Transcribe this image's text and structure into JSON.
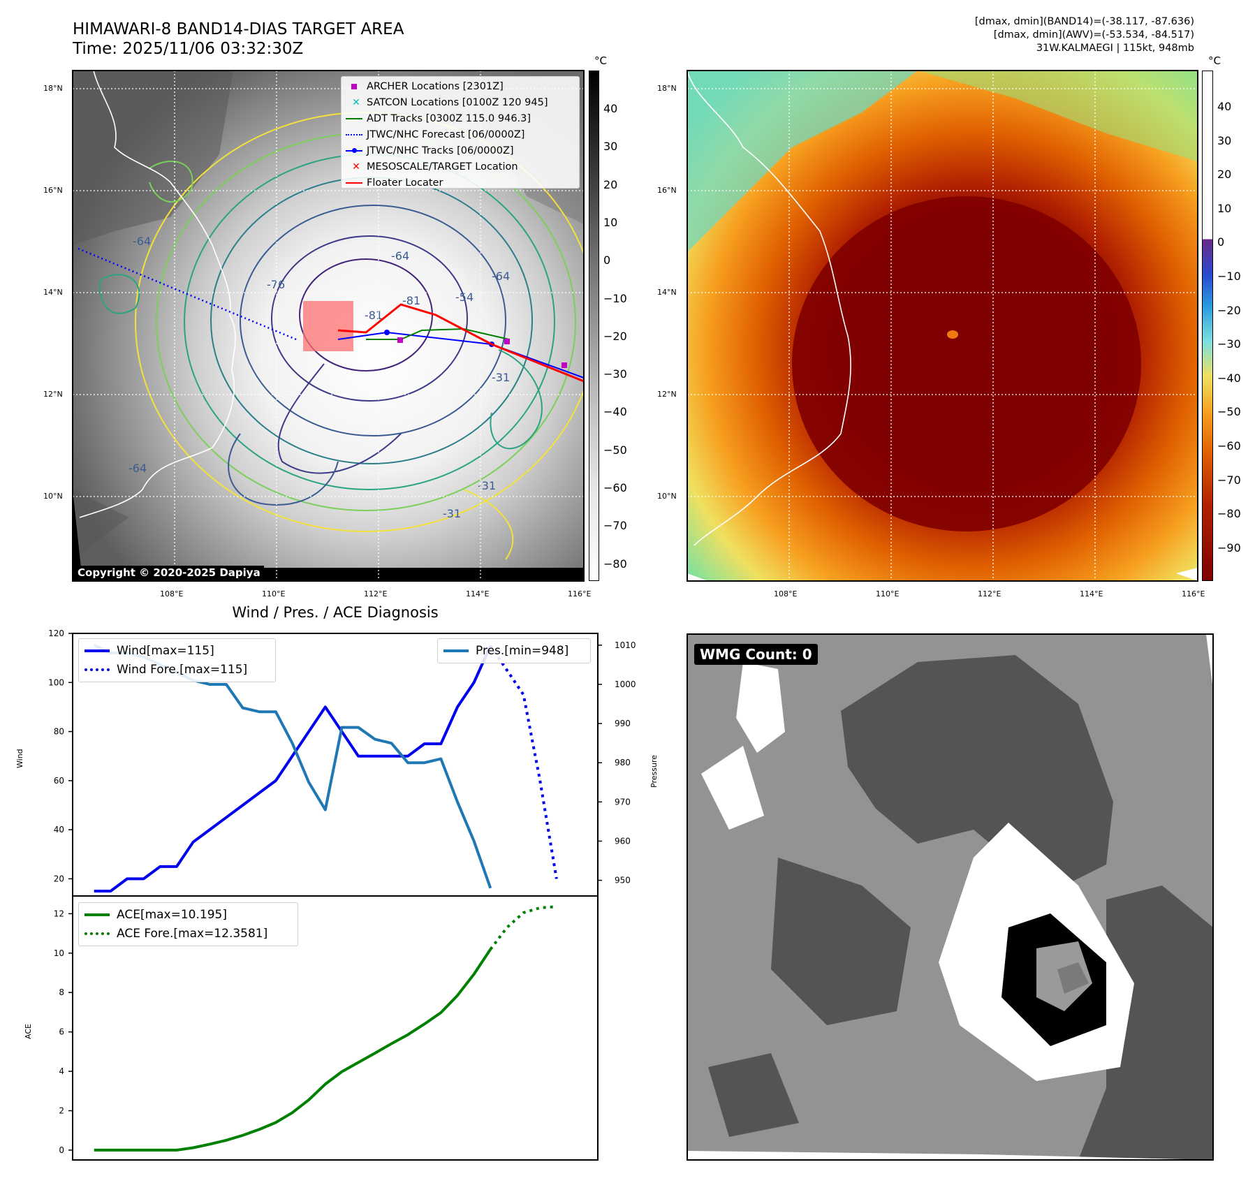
{
  "header": {
    "title_line1": "HIMAWARI-8 BAND14-DIAS TARGET AREA",
    "title_line2": "Time: 2025/11/06 03:32:30Z",
    "stats_line1": "[dmax, dmin](BAND14)=(-38.117, -87.636)",
    "stats_line2": "[dmax, dmin](AWV)=(-53.534, -84.517)",
    "stats_line3": "31W.KALMAEGI | 115kt, 948mb"
  },
  "colors": {
    "wind": "#0000ee",
    "pressure": "#1f77b4",
    "ace": "#008000",
    "track_red": "#ff0000",
    "archer": "#c000c0",
    "satcon": "#00bfbf",
    "jtwc": "#0000ff",
    "ir_eye": "#7f0000",
    "wmg_dark": "#545454"
  },
  "ir_panel": {
    "lat_labels": [
      "18°N",
      "16°N",
      "14°N",
      "12°N",
      "10°N"
    ],
    "lon_labels": [
      "108°E",
      "110°E",
      "112°E",
      "114°E",
      "116°E"
    ],
    "colorbar_unit": "°C",
    "colorbar_ticks": [
      "40",
      "30",
      "20",
      "10",
      "0",
      "−10",
      "−20",
      "−30",
      "−40",
      "−50",
      "−60",
      "−70",
      "−80"
    ],
    "contour_labels": [
      "-64",
      "-76",
      "-81",
      "-64",
      "-31",
      "-64",
      "-31",
      "-31",
      "-64",
      "-81",
      "-54"
    ],
    "copyright": "Copyright © 2020-2025 Dapiya",
    "legend": [
      {
        "label": "ARCHER Locations [2301Z]",
        "icon": "square-marker-icon"
      },
      {
        "label": "SATCON Locations [0100Z 120 945]",
        "icon": "x-marker-icon"
      },
      {
        "label": "ADT Tracks [0300Z 115.0 946.3]",
        "icon": "line-icon"
      },
      {
        "label": "JTWC/NHC Forecast [06/0000Z]",
        "icon": "dotted-line-icon"
      },
      {
        "label": "JTWC/NHC Tracks [06/0000Z]",
        "icon": "line-dot-icon"
      },
      {
        "label": "MESOSCALE/TARGET Location",
        "icon": "x-marker-icon"
      },
      {
        "label": "Floater Locater",
        "icon": "line-icon"
      }
    ]
  },
  "awv_panel": {
    "lat_labels": [
      "18°N",
      "16°N",
      "14°N",
      "12°N",
      "10°N"
    ],
    "lon_labels": [
      "108°E",
      "110°E",
      "112°E",
      "114°E",
      "116°E"
    ],
    "colorbar_unit": "°C",
    "colorbar_ticks": [
      "40",
      "30",
      "20",
      "10",
      "0",
      "−10",
      "−20",
      "−30",
      "−40",
      "−50",
      "−60",
      "−70",
      "−80",
      "−90"
    ]
  },
  "wmg_panel": {
    "badge": "WMG Count: 0"
  },
  "chart_data": [
    {
      "type": "line",
      "title": "Wind / Pres. / ACE Diagnosis",
      "ylabel": "Wind",
      "ylabel_right": "Pressure",
      "ylim": [
        13,
        120
      ],
      "ylim_right": [
        946,
        1013
      ],
      "yticks": [
        20,
        40,
        60,
        80,
        100,
        120
      ],
      "yticks_right": [
        950,
        960,
        970,
        980,
        990,
        1000,
        1010
      ],
      "legend_left": [
        "Wind[max=115]",
        "Wind Fore.[max=115]"
      ],
      "legend_right": [
        "Pres.[min=948]"
      ],
      "series": [
        {
          "name": "Wind[max=115]",
          "axis": "left",
          "style": "solid",
          "x": [
            0,
            1,
            2,
            3,
            4,
            5,
            6,
            7,
            8,
            9,
            10,
            11,
            12,
            13,
            14,
            15,
            16,
            17,
            18,
            19,
            20,
            21,
            22,
            23,
            24
          ],
          "values": [
            15,
            15,
            20,
            20,
            25,
            25,
            35,
            40,
            45,
            50,
            55,
            60,
            70,
            80,
            90,
            80,
            70,
            70,
            70,
            70,
            75,
            75,
            90,
            100,
            115
          ]
        },
        {
          "name": "Wind Fore.[max=115]",
          "axis": "left",
          "style": "dotted",
          "x": [
            24,
            25,
            26,
            27,
            28
          ],
          "values": [
            115,
            105,
            95,
            60,
            20
          ]
        },
        {
          "name": "Pres.[min=948]",
          "axis": "right",
          "style": "solid",
          "x": [
            0,
            1,
            2,
            3,
            4,
            5,
            6,
            7,
            8,
            9,
            10,
            11,
            12,
            13,
            14,
            15,
            16,
            17,
            18,
            19,
            20,
            21,
            22,
            23,
            24
          ],
          "values": [
            1010,
            1008,
            1008,
            1007,
            1005,
            1003,
            1001,
            1000,
            1000,
            994,
            993,
            993,
            985,
            975,
            968,
            989,
            989,
            986,
            985,
            980,
            980,
            981,
            970,
            960,
            948
          ]
        }
      ]
    },
    {
      "type": "line",
      "ylabel": "ACE",
      "ylim": [
        -0.5,
        12.9
      ],
      "yticks": [
        0,
        2,
        4,
        6,
        8,
        10,
        12
      ],
      "legend": [
        "ACE[max=10.195]",
        "ACE Fore.[max=12.3581]"
      ],
      "series": [
        {
          "name": "ACE[max=10.195]",
          "style": "solid",
          "x": [
            0,
            1,
            2,
            3,
            4,
            5,
            6,
            7,
            8,
            9,
            10,
            11,
            12,
            13,
            14,
            15,
            16,
            17,
            18,
            19,
            20,
            21,
            22,
            23,
            24
          ],
          "values": [
            0,
            0,
            0,
            0,
            0,
            0,
            0.12,
            0.3,
            0.5,
            0.75,
            1.05,
            1.4,
            1.9,
            2.55,
            3.35,
            3.98,
            4.45,
            4.92,
            5.4,
            5.86,
            6.4,
            6.98,
            7.85,
            8.93,
            10.195
          ]
        },
        {
          "name": "ACE Fore.[max=12.3581]",
          "style": "dotted",
          "x": [
            24,
            25,
            26,
            27,
            28
          ],
          "values": [
            10.195,
            11.3,
            12.05,
            12.3,
            12.3581
          ]
        }
      ]
    }
  ]
}
